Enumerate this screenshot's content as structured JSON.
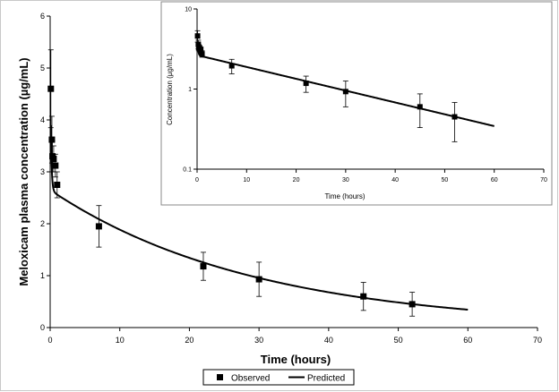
{
  "chart_data": [
    {
      "type": "scatter",
      "role": "main",
      "xlabel": "Time (hours)",
      "ylabel": "Meloxicam plasma concentration (µg/mL)",
      "xlim": [
        0,
        70
      ],
      "ylim": [
        0,
        6
      ],
      "x_ticks": [
        0,
        10,
        20,
        30,
        40,
        50,
        60,
        70
      ],
      "y_ticks": [
        0,
        1,
        2,
        3,
        4,
        5,
        6
      ],
      "grid": false,
      "series": [
        {
          "name": "Observed",
          "marker": "square",
          "points": [
            {
              "x": 0.1,
              "y": 4.6,
              "err": 0.75
            },
            {
              "x": 0.25,
              "y": 3.62,
              "err": 0.45
            },
            {
              "x": 0.33,
              "y": 3.3,
              "err": 0.3
            },
            {
              "x": 0.5,
              "y": 3.25,
              "err": 0.25
            },
            {
              "x": 0.75,
              "y": 3.12,
              "err": 0.22
            },
            {
              "x": 1.0,
              "y": 2.75,
              "err": 0.25
            },
            {
              "x": 7.0,
              "y": 1.95,
              "err": 0.4
            },
            {
              "x": 22.0,
              "y": 1.18,
              "err": 0.27
            },
            {
              "x": 30.0,
              "y": 0.93,
              "err": 0.33
            },
            {
              "x": 45.0,
              "y": 0.6,
              "err": 0.27
            },
            {
              "x": 52.0,
              "y": 0.45,
              "err": 0.23
            }
          ]
        },
        {
          "name": "Predicted",
          "style": "line",
          "model": {
            "a": 2.8,
            "alpha": 8.0,
            "b": 2.65,
            "beta": 0.034,
            "x_start": 0.1,
            "x_end": 60
          }
        }
      ]
    },
    {
      "type": "scatter",
      "role": "inset",
      "xlabel": "Time (hours)",
      "ylabel": "Concentration (µg/mL)",
      "xlim": [
        0,
        70
      ],
      "ylim": [
        0.1,
        10
      ],
      "yscale": "log",
      "x_ticks": [
        0,
        10,
        20,
        30,
        40,
        50,
        60,
        70
      ],
      "y_ticks": [
        0.1,
        1,
        10
      ],
      "y_tick_labels": [
        "0.1",
        "1",
        "10"
      ],
      "grid": false
    }
  ],
  "legend": {
    "placement": "bottom",
    "items": [
      {
        "label": "Observed",
        "symbol": "square"
      },
      {
        "label": "Predicted",
        "symbol": "line"
      }
    ]
  }
}
